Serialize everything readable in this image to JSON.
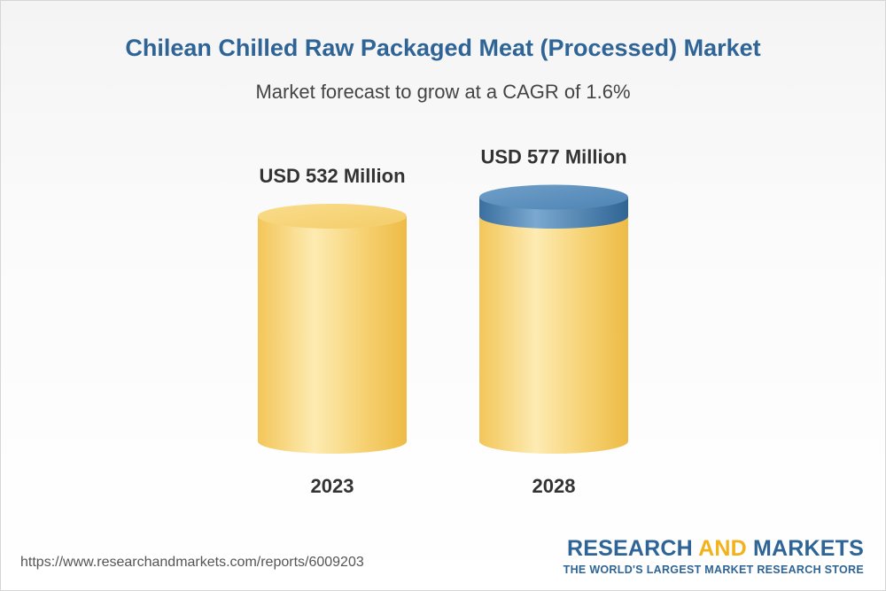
{
  "chart_data": {
    "type": "bar",
    "style": "cylinder",
    "title": "Chilean Chilled Raw Packaged Meat (Processed) Market",
    "subtitle": "Market forecast to grow at a CAGR of 1.6%",
    "categories": [
      "2023",
      "2028"
    ],
    "values": [
      532,
      577
    ],
    "value_labels": [
      "USD 532 Million",
      "USD 577 Million"
    ],
    "unit": "USD Million",
    "cagr_percent": 1.6,
    "colors": {
      "bar_body": "#f5cf6b",
      "bar_light": "#fdecb4",
      "bar_shadow": "#ecbb47",
      "bar_cap": "#f9dc8c",
      "growth_band": "#3f77a8",
      "growth_top": "#6a9bc6"
    }
  },
  "footer": {
    "url": "https://www.researchandmarkets.com/reports/6009203",
    "brand_part1": "RESEARCH ",
    "brand_part2": "AND",
    "brand_part3": " MARKETS",
    "tagline": "THE WORLD'S LARGEST MARKET RESEARCH STORE"
  }
}
